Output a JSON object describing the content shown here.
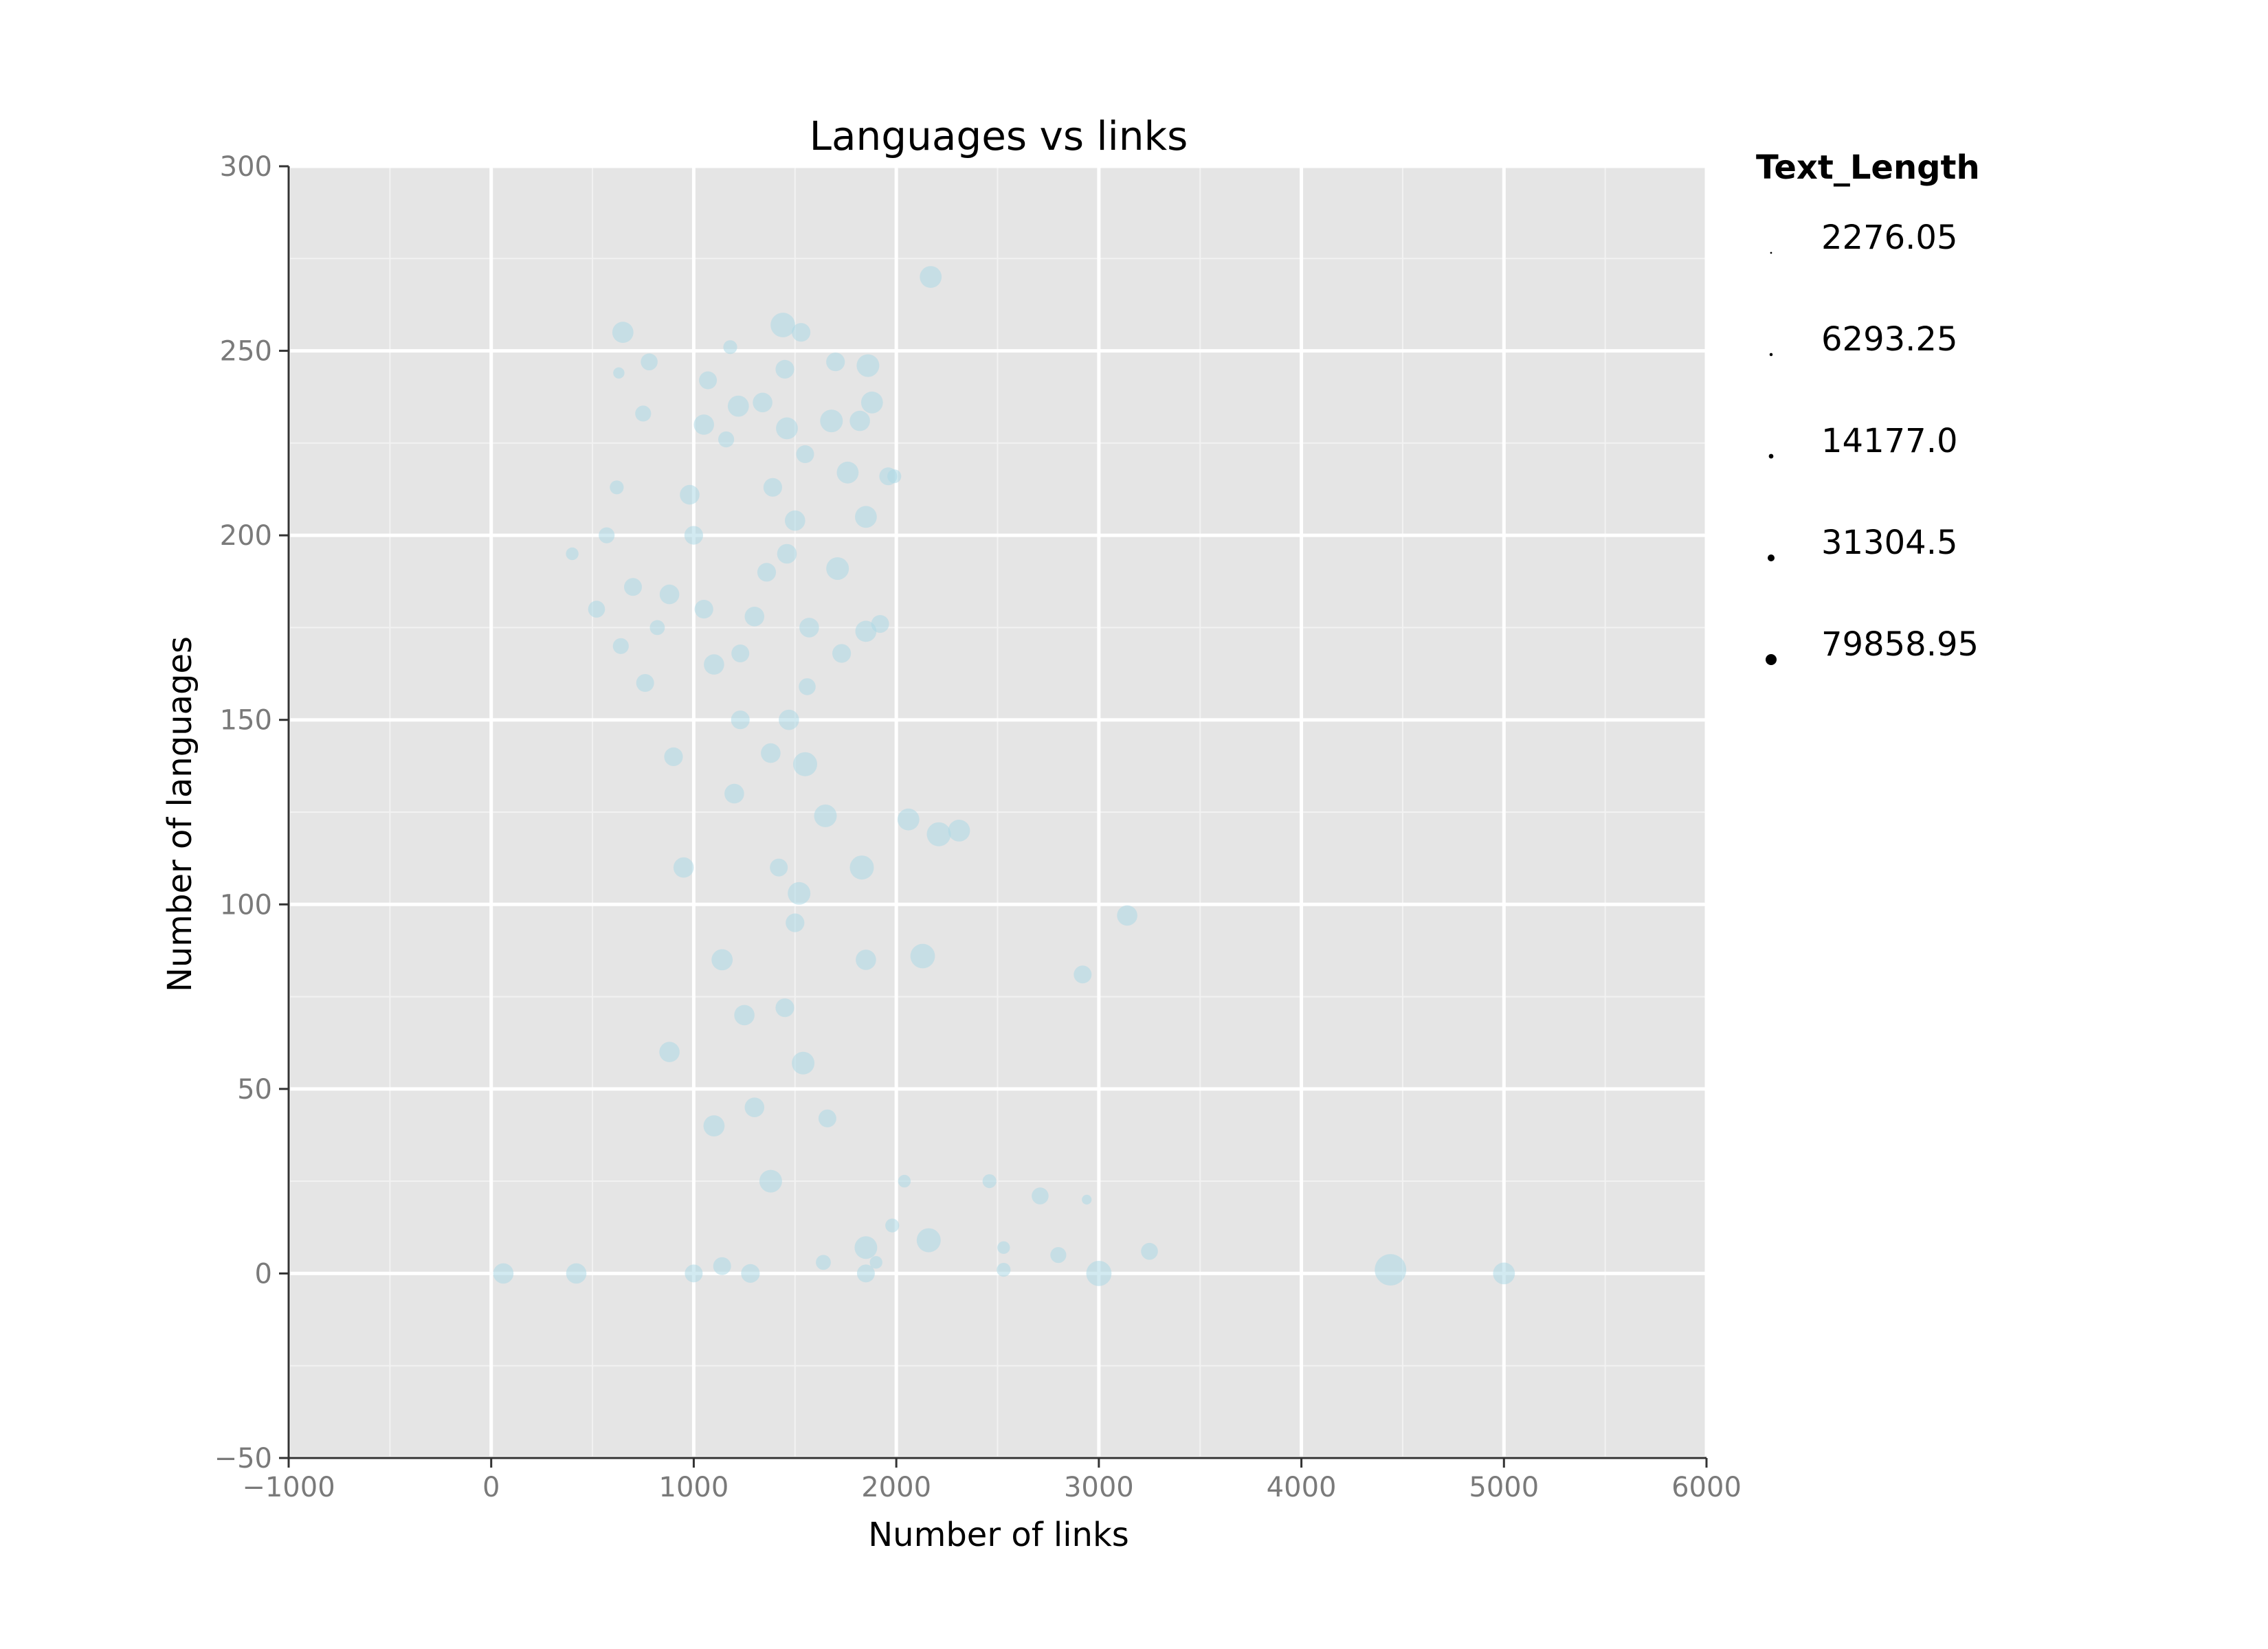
{
  "chart_data": {
    "type": "scatter",
    "title": "Languages vs links",
    "xlabel": "Number of links",
    "ylabel": "Number of languages",
    "xlim": [
      -1000,
      6000
    ],
    "ylim": [
      -50,
      300
    ],
    "x_ticks": [
      -1000,
      0,
      1000,
      2000,
      3000,
      4000,
      5000,
      6000
    ],
    "y_ticks": [
      -50,
      0,
      50,
      100,
      150,
      200,
      250,
      300
    ],
    "x_tick_labels": [
      "−1000",
      "0",
      "1000",
      "2000",
      "3000",
      "4000",
      "5000",
      "6000"
    ],
    "y_tick_labels": [
      "−50",
      "0",
      "50",
      "100",
      "150",
      "200",
      "250",
      "300"
    ],
    "grid": true,
    "panel_background": "#e5e5e5",
    "point_color": "#add8e6",
    "point_alpha": 0.55,
    "legend": {
      "title": "Text_Length",
      "placement": "right",
      "entries": [
        "2276.05",
        "6293.25",
        "14177.0",
        "31304.5",
        "79858.95"
      ],
      "size_values": [
        2276.05,
        6293.25,
        14177.0,
        31304.5,
        79858.95
      ]
    },
    "points": [
      [
        2170,
        270,
        30000
      ],
      [
        1440,
        257,
        38000
      ],
      [
        650,
        255,
        28000
      ],
      [
        1530,
        255,
        22000
      ],
      [
        1180,
        251,
        12000
      ],
      [
        1700,
        247,
        22000
      ],
      [
        1860,
        246,
        32000
      ],
      [
        780,
        247,
        18000
      ],
      [
        630,
        244,
        8000
      ],
      [
        1450,
        245,
        22000
      ],
      [
        1070,
        242,
        20000
      ],
      [
        1880,
        236,
        30000
      ],
      [
        1220,
        235,
        28000
      ],
      [
        1340,
        236,
        24000
      ],
      [
        750,
        233,
        16000
      ],
      [
        1680,
        231,
        32000
      ],
      [
        1820,
        231,
        26000
      ],
      [
        1460,
        229,
        30000
      ],
      [
        1050,
        230,
        26000
      ],
      [
        1160,
        226,
        16000
      ],
      [
        1550,
        222,
        20000
      ],
      [
        1760,
        217,
        30000
      ],
      [
        1960,
        216,
        20000
      ],
      [
        620,
        213,
        12000
      ],
      [
        1990,
        216,
        12000
      ],
      [
        980,
        211,
        24000
      ],
      [
        1390,
        213,
        22000
      ],
      [
        1850,
        205,
        30000
      ],
      [
        1500,
        204,
        26000
      ],
      [
        570,
        200,
        16000
      ],
      [
        1460,
        195,
        24000
      ],
      [
        1710,
        191,
        32000
      ],
      [
        400,
        195,
        10000
      ],
      [
        1360,
        190,
        22000
      ],
      [
        700,
        186,
        20000
      ],
      [
        880,
        184,
        24000
      ],
      [
        1050,
        180,
        22000
      ],
      [
        1300,
        178,
        24000
      ],
      [
        1570,
        175,
        24000
      ],
      [
        1850,
        174,
        28000
      ],
      [
        1920,
        176,
        20000
      ],
      [
        1730,
        168,
        22000
      ],
      [
        1230,
        168,
        20000
      ],
      [
        1100,
        165,
        26000
      ],
      [
        1560,
        159,
        18000
      ],
      [
        1470,
        150,
        26000
      ],
      [
        1550,
        138,
        36000
      ],
      [
        1230,
        150,
        22000
      ],
      [
        1380,
        141,
        24000
      ],
      [
        1650,
        124,
        32000
      ],
      [
        2060,
        123,
        30000
      ],
      [
        2210,
        119,
        36000
      ],
      [
        2310,
        120,
        30000
      ],
      [
        1830,
        110,
        36000
      ],
      [
        1520,
        103,
        32000
      ],
      [
        1500,
        95,
        22000
      ],
      [
        1850,
        85,
        26000
      ],
      [
        2130,
        86,
        38000
      ],
      [
        3140,
        97,
        26000
      ],
      [
        2920,
        81,
        20000
      ],
      [
        1540,
        57,
        32000
      ],
      [
        1660,
        42,
        20000
      ],
      [
        1380,
        25,
        32000
      ],
      [
        2460,
        25,
        12000
      ],
      [
        2040,
        25,
        10000
      ],
      [
        2710,
        21,
        18000
      ],
      [
        2940,
        20,
        6000
      ],
      [
        2160,
        9,
        36000
      ],
      [
        1850,
        7,
        32000
      ],
      [
        2530,
        7,
        10000
      ],
      [
        2800,
        5,
        16000
      ],
      [
        3250,
        6,
        18000
      ],
      [
        3000,
        0,
        40000
      ],
      [
        4440,
        1,
        62000
      ],
      [
        5000,
        0,
        30000
      ],
      [
        2530,
        1,
        12000
      ],
      [
        1850,
        0,
        20000
      ],
      [
        1640,
        3,
        14000
      ],
      [
        1900,
        3,
        10000
      ],
      [
        1980,
        13,
        12000
      ],
      [
        1140,
        2,
        20000
      ],
      [
        1280,
        0,
        22000
      ],
      [
        1000,
        0,
        20000
      ],
      [
        420,
        0,
        26000
      ],
      [
        60,
        0,
        26000
      ],
      [
        880,
        60,
        26000
      ],
      [
        1140,
        85,
        28000
      ],
      [
        1250,
        70,
        26000
      ],
      [
        950,
        110,
        26000
      ],
      [
        1200,
        130,
        24000
      ],
      [
        900,
        140,
        22000
      ],
      [
        760,
        160,
        20000
      ],
      [
        1000,
        200,
        22000
      ],
      [
        520,
        180,
        18000
      ],
      [
        640,
        170,
        16000
      ],
      [
        820,
        175,
        14000
      ],
      [
        1420,
        110,
        20000
      ],
      [
        1450,
        72,
        22000
      ],
      [
        1300,
        45,
        24000
      ],
      [
        1100,
        40,
        28000
      ]
    ]
  }
}
